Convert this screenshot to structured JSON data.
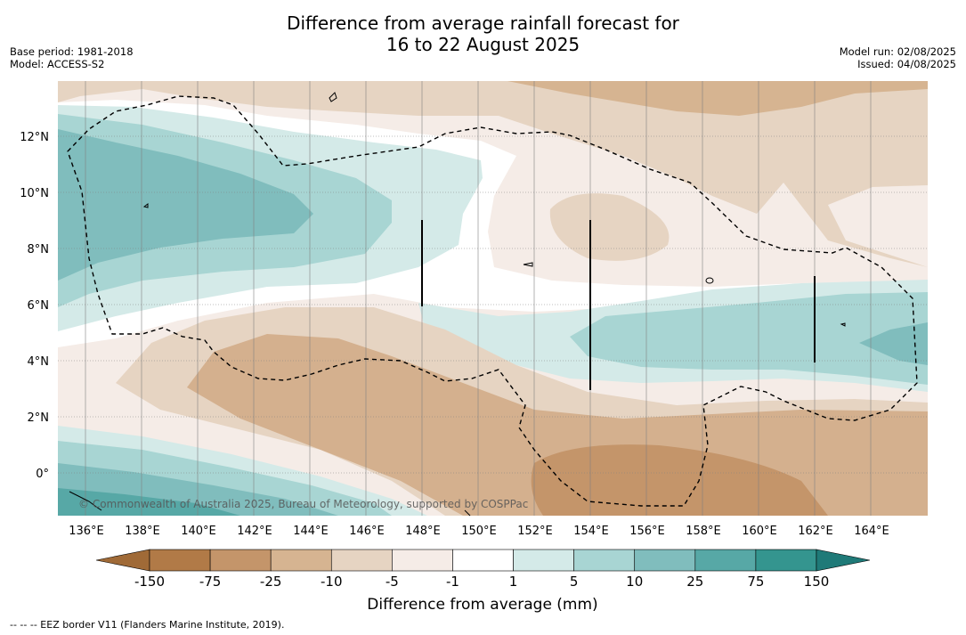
{
  "header": {
    "title_line1": "Difference from average rainfall forecast for",
    "title_line2": "16 to 22 August 2025",
    "base_period": "Base period: 1981-2018",
    "model": "Model: ACCESS-S2",
    "model_run": "Model run: 02/08/2025",
    "issued": "Issued: 04/08/2025"
  },
  "map": {
    "lon_labels": [
      "136°E",
      "138°E",
      "140°E",
      "142°E",
      "144°E",
      "146°E",
      "148°E",
      "150°E",
      "152°E",
      "154°E",
      "156°E",
      "158°E",
      "160°E",
      "162°E",
      "164°E"
    ],
    "lat_labels": [
      "12°N",
      "10°N",
      "8°N",
      "6°N",
      "4°N",
      "2°N",
      "0°"
    ],
    "copyright": "© Commonwealth of Australia 2025, Bureau of Meteorology, supported by COSPPac",
    "graticule": true
  },
  "colorbar": {
    "title": "Difference from average (mm)",
    "tick_labels": [
      "-150",
      "-75",
      "-25",
      "-10",
      "-5",
      "-1",
      "1",
      "5",
      "10",
      "25",
      "75",
      "150"
    ],
    "colors": [
      "#a06a37",
      "#b17a47",
      "#c4956a",
      "#d6b491",
      "#e6d4c2",
      "#f5ece7",
      "#ffffff",
      "#d4eae8",
      "#a8d5d3",
      "#80bdbd",
      "#57a8a6",
      "#34958f",
      "#1f7a78"
    ]
  },
  "footnote": "-- -- -- EEZ border V11 (Flanders Marine Institute, 2019)."
}
